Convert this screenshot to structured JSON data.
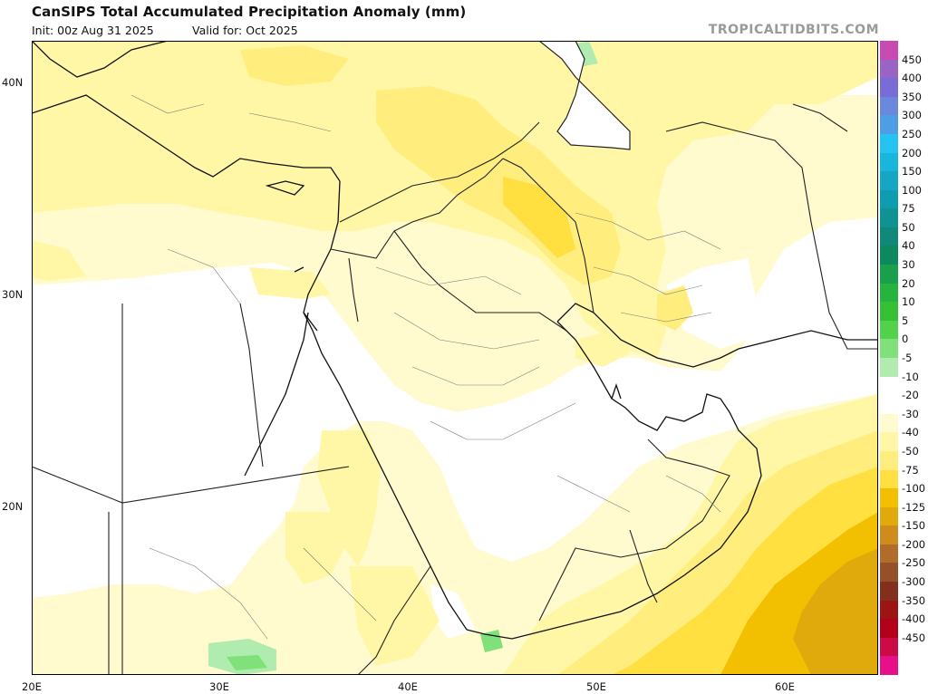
{
  "header": {
    "title": "CanSIPS Total Accumulated Precipitation Anomaly (mm)",
    "init": "Init: 00z Aug 31 2025",
    "valid": "Valid for: Oct 2025",
    "brand": "TROPICALTIDBITS.COM"
  },
  "axes": {
    "lat_labels": [
      "40N",
      "30N",
      "20N"
    ],
    "lon_labels": [
      "20E",
      "30E",
      "40E",
      "50E",
      "60E"
    ]
  },
  "colorbar": {
    "labels": [
      "450",
      "400",
      "350",
      "300",
      "250",
      "200",
      "150",
      "100",
      "75",
      "50",
      "40",
      "30",
      "20",
      "10",
      "5",
      "0",
      "-5",
      "-10",
      "-20",
      "-30",
      "-40",
      "-50",
      "-75",
      "-100",
      "-125",
      "-150",
      "-200",
      "-250",
      "-300",
      "-350",
      "-400",
      "-450"
    ],
    "colors": [
      "#c84bb4",
      "#9a64c4",
      "#7a6cd6",
      "#6a88dc",
      "#4e9ee6",
      "#24c3f2",
      "#18b6dc",
      "#14a6c2",
      "#109cb0",
      "#0e9294",
      "#10887a",
      "#0c8a5e",
      "#1aa04a",
      "#26b43e",
      "#36c034",
      "#52d24a",
      "#80e07a",
      "#b0ecb0",
      "#ffffff",
      "#ffffff",
      "#fffbd0",
      "#fff6a6",
      "#ffee7e",
      "#ffe040",
      "#f2c000",
      "#e0aa0c",
      "#cf8c1c",
      "#b06c28",
      "#945026",
      "#82301c",
      "#9c1414",
      "#b3001a",
      "#cc0a46",
      "#e8108a"
    ]
  }
}
